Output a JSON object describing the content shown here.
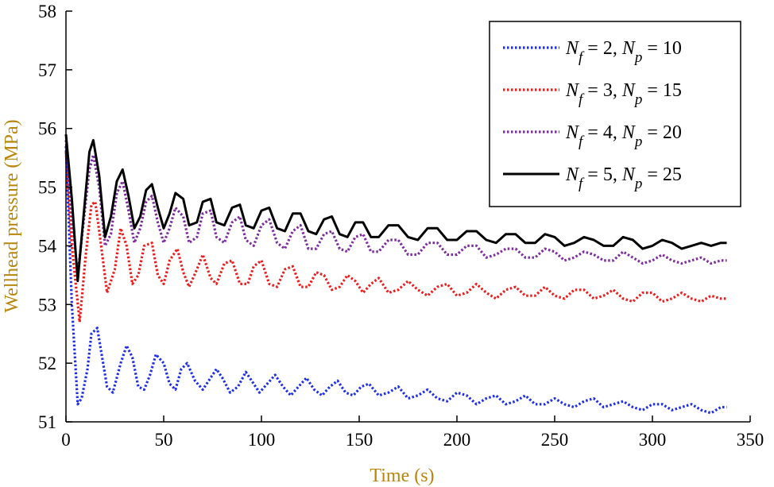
{
  "chart_data": {
    "type": "line",
    "title": "",
    "xlabel": "Time (s)",
    "ylabel": "Wellhead pressure (MPa)",
    "xlim": [
      0,
      350
    ],
    "ylim": [
      51,
      58
    ],
    "xticks": [
      "0",
      "50",
      "100",
      "150",
      "200",
      "250",
      "300",
      "350"
    ],
    "yticks": [
      "51",
      "52",
      "53",
      "54",
      "55",
      "56",
      "57",
      "58"
    ],
    "legend_position": "top-right",
    "series": [
      {
        "name": "Nf = 2, Np = 10",
        "legend": {
          "a": "N",
          "as": "f",
          "b": " = 2, ",
          "c": "N",
          "cs": "p",
          "d": " = 10"
        },
        "color": "#1f2ee8",
        "dash": "dotted",
        "x": [
          0,
          3,
          6,
          8,
          11,
          13,
          16,
          18,
          21,
          24,
          28,
          31,
          34,
          37,
          40,
          43,
          46,
          50,
          53,
          56,
          59,
          62,
          66,
          70,
          73,
          77,
          80,
          84,
          88,
          92,
          95,
          99,
          103,
          107,
          111,
          115,
          119,
          123,
          127,
          131,
          135,
          139,
          143,
          147,
          151,
          155,
          160,
          165,
          170,
          175,
          180,
          185,
          190,
          195,
          200,
          205,
          210,
          215,
          220,
          225,
          230,
          235,
          240,
          245,
          250,
          255,
          260,
          265,
          270,
          275,
          280,
          285,
          290,
          295,
          300,
          305,
          310,
          315,
          320,
          325,
          330,
          335,
          338
        ],
        "y": [
          55.7,
          53.0,
          51.3,
          51.4,
          51.9,
          52.5,
          52.6,
          52.2,
          51.6,
          51.5,
          52.0,
          52.3,
          52.1,
          51.6,
          51.55,
          51.8,
          52.15,
          52.0,
          51.65,
          51.55,
          51.9,
          52.0,
          51.7,
          51.55,
          51.7,
          51.9,
          51.75,
          51.5,
          51.6,
          51.85,
          51.7,
          51.5,
          51.65,
          51.8,
          51.6,
          51.45,
          51.6,
          51.75,
          51.55,
          51.45,
          51.6,
          51.7,
          51.5,
          51.45,
          51.6,
          51.65,
          51.45,
          51.5,
          51.6,
          51.4,
          51.45,
          51.55,
          51.4,
          51.35,
          51.5,
          51.45,
          51.3,
          51.4,
          51.45,
          51.3,
          51.35,
          51.45,
          51.3,
          51.3,
          51.4,
          51.3,
          51.25,
          51.35,
          51.4,
          51.25,
          51.3,
          51.35,
          51.25,
          51.2,
          51.3,
          51.3,
          51.2,
          51.25,
          51.3,
          51.2,
          51.15,
          51.25,
          51.25
        ]
      },
      {
        "name": "Nf = 3, Np = 15",
        "legend": {
          "a": "N",
          "as": "f",
          "b": " = 3, ",
          "c": "N",
          "cs": "p",
          "d": " = 15"
        },
        "color": "#ee1c1c",
        "dash": "dotted",
        "x": [
          0,
          3,
          7,
          10,
          13,
          15,
          18,
          21,
          25,
          28,
          31,
          34,
          37,
          40,
          44,
          47,
          50,
          53,
          57,
          60,
          63,
          67,
          70,
          74,
          77,
          81,
          85,
          89,
          93,
          96,
          100,
          104,
          108,
          112,
          116,
          120,
          124,
          128,
          132,
          136,
          140,
          144,
          148,
          152,
          156,
          160,
          165,
          170,
          175,
          180,
          185,
          190,
          195,
          200,
          205,
          210,
          215,
          220,
          225,
          230,
          235,
          240,
          245,
          250,
          255,
          260,
          265,
          270,
          275,
          280,
          285,
          290,
          295,
          300,
          305,
          310,
          315,
          320,
          325,
          330,
          335,
          338
        ],
        "y": [
          55.6,
          54.0,
          52.7,
          53.8,
          54.7,
          54.75,
          54.0,
          53.2,
          53.6,
          54.3,
          54.0,
          53.35,
          53.5,
          54.0,
          54.05,
          53.5,
          53.35,
          53.75,
          53.95,
          53.55,
          53.3,
          53.6,
          53.85,
          53.45,
          53.35,
          53.7,
          53.75,
          53.35,
          53.35,
          53.65,
          53.75,
          53.35,
          53.3,
          53.6,
          53.65,
          53.3,
          53.3,
          53.55,
          53.5,
          53.25,
          53.3,
          53.5,
          53.4,
          53.2,
          53.35,
          53.45,
          53.2,
          53.25,
          53.4,
          53.25,
          53.15,
          53.3,
          53.35,
          53.15,
          53.2,
          53.35,
          53.2,
          53.1,
          53.25,
          53.3,
          53.15,
          53.15,
          53.3,
          53.15,
          53.1,
          53.25,
          53.25,
          53.1,
          53.15,
          53.25,
          53.1,
          53.05,
          53.2,
          53.2,
          53.05,
          53.1,
          53.2,
          53.1,
          53.05,
          53.15,
          53.1,
          53.1
        ]
      },
      {
        "name": "Nf = 4, Np = 20",
        "legend": {
          "a": "N",
          "as": "f",
          "b": " = 4, ",
          "c": "N",
          "cs": "p",
          "d": " = 20"
        },
        "color": "#7e2d9e",
        "dash": "dotted",
        "x": [
          0,
          3,
          6,
          9,
          12,
          14,
          17,
          20,
          23,
          26,
          29,
          32,
          35,
          38,
          41,
          44,
          47,
          50,
          53,
          56,
          60,
          63,
          67,
          70,
          74,
          77,
          81,
          85,
          89,
          92,
          96,
          100,
          104,
          108,
          112,
          116,
          120,
          124,
          128,
          132,
          136,
          140,
          144,
          148,
          152,
          156,
          160,
          165,
          170,
          175,
          180,
          185,
          190,
          195,
          200,
          205,
          210,
          215,
          220,
          225,
          230,
          235,
          240,
          245,
          250,
          255,
          260,
          265,
          270,
          275,
          280,
          285,
          290,
          295,
          300,
          305,
          310,
          315,
          320,
          325,
          330,
          335,
          338
        ],
        "y": [
          55.8,
          54.5,
          53.5,
          54.4,
          55.3,
          55.55,
          55.0,
          54.0,
          54.2,
          54.9,
          55.1,
          54.6,
          54.05,
          54.3,
          54.75,
          54.85,
          54.4,
          54.05,
          54.3,
          54.65,
          54.5,
          54.05,
          54.15,
          54.55,
          54.6,
          54.15,
          54.05,
          54.4,
          54.5,
          54.1,
          54.0,
          54.35,
          54.45,
          54.05,
          53.95,
          54.25,
          54.35,
          53.95,
          53.95,
          54.2,
          54.25,
          53.95,
          53.9,
          54.15,
          54.2,
          53.9,
          53.9,
          54.1,
          54.1,
          53.85,
          53.85,
          54.05,
          54.05,
          53.85,
          53.85,
          54.0,
          54.0,
          53.8,
          53.85,
          53.95,
          53.95,
          53.8,
          53.8,
          53.95,
          53.9,
          53.75,
          53.8,
          53.9,
          53.85,
          53.75,
          53.75,
          53.9,
          53.8,
          53.7,
          53.75,
          53.85,
          53.75,
          53.7,
          53.75,
          53.8,
          53.7,
          53.75,
          53.75
        ]
      },
      {
        "name": "Nf = 5, Np = 25",
        "legend": {
          "a": "N",
          "as": "f",
          "b": " = 5, ",
          "c": "N",
          "cs": "p",
          "d": " = 25"
        },
        "color": "#000000",
        "dash": "solid",
        "x": [
          0,
          3,
          6,
          9,
          12,
          14,
          17,
          20,
          23,
          26,
          29,
          32,
          35,
          38,
          41,
          44,
          47,
          50,
          53,
          56,
          60,
          63,
          67,
          70,
          74,
          77,
          81,
          85,
          89,
          92,
          96,
          100,
          104,
          108,
          112,
          116,
          120,
          124,
          128,
          132,
          136,
          140,
          144,
          148,
          152,
          156,
          160,
          165,
          170,
          175,
          180,
          185,
          190,
          195,
          200,
          205,
          210,
          215,
          220,
          225,
          230,
          235,
          240,
          245,
          250,
          255,
          260,
          265,
          270,
          275,
          280,
          285,
          290,
          295,
          300,
          305,
          310,
          315,
          320,
          325,
          330,
          335,
          338
        ],
        "y": [
          55.9,
          54.8,
          53.4,
          54.5,
          55.6,
          55.8,
          55.2,
          54.15,
          54.5,
          55.1,
          55.3,
          54.85,
          54.3,
          54.5,
          54.95,
          55.05,
          54.65,
          54.3,
          54.55,
          54.9,
          54.8,
          54.35,
          54.4,
          54.75,
          54.8,
          54.4,
          54.35,
          54.65,
          54.7,
          54.35,
          54.3,
          54.6,
          54.65,
          54.3,
          54.25,
          54.55,
          54.55,
          54.25,
          54.2,
          54.45,
          54.5,
          54.2,
          54.15,
          54.4,
          54.4,
          54.15,
          54.15,
          54.35,
          54.35,
          54.15,
          54.1,
          54.3,
          54.3,
          54.1,
          54.1,
          54.25,
          54.25,
          54.1,
          54.05,
          54.2,
          54.2,
          54.05,
          54.05,
          54.2,
          54.15,
          54.0,
          54.05,
          54.15,
          54.1,
          54.0,
          54.0,
          54.15,
          54.1,
          53.95,
          54.0,
          54.1,
          54.05,
          53.95,
          54.0,
          54.05,
          54.0,
          54.05,
          54.05
        ]
      }
    ]
  }
}
